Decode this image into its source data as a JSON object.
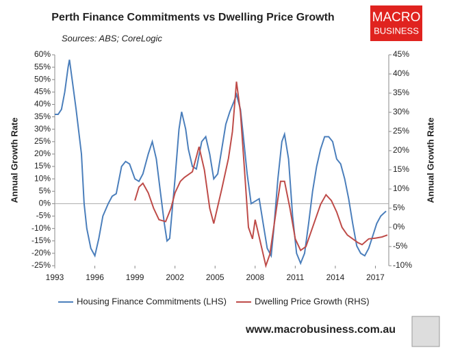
{
  "chart_data": {
    "type": "line",
    "title": "Perth Finance Commitments vs Dwelling Price Growth",
    "subtitle": "Sources: ABS; CoreLogic",
    "ylabel": "Annual Growth Rate",
    "y2label": "Annual Growth Rate",
    "xlim": [
      1993,
      2018
    ],
    "xticks": [
      1993,
      1996,
      1999,
      2002,
      2005,
      2008,
      2011,
      2014,
      2017
    ],
    "ylim": [
      -25,
      60
    ],
    "yticks": [
      {
        "value": -25,
        "label": "-25%"
      },
      {
        "value": -20,
        "label": "-20%"
      },
      {
        "value": -15,
        "label": "-15%"
      },
      {
        "value": -10,
        "label": "-10%"
      },
      {
        "value": -5,
        "label": "-5%"
      },
      {
        "value": 0,
        "label": "0%"
      },
      {
        "value": 5,
        "label": "5%"
      },
      {
        "value": 10,
        "label": "10%"
      },
      {
        "value": 15,
        "label": "15%"
      },
      {
        "value": 20,
        "label": "20%"
      },
      {
        "value": 25,
        "label": "25%"
      },
      {
        "value": 30,
        "label": "30%"
      },
      {
        "value": 35,
        "label": "35%"
      },
      {
        "value": 40,
        "label": "40%"
      },
      {
        "value": 45,
        "label": "45%"
      },
      {
        "value": 50,
        "label": "50%"
      },
      {
        "value": 55,
        "label": "55%"
      },
      {
        "value": 60,
        "label": "60%"
      }
    ],
    "y2lim": [
      -10,
      45
    ],
    "y2ticks": [
      {
        "value": -10,
        "label": "-10%"
      },
      {
        "value": -5,
        "label": "-5%"
      },
      {
        "value": 0,
        "label": "0%"
      },
      {
        "value": 5,
        "label": "5%"
      },
      {
        "value": 10,
        "label": "10%"
      },
      {
        "value": 15,
        "label": "15%"
      },
      {
        "value": 20,
        "label": "20%"
      },
      {
        "value": 25,
        "label": "25%"
      },
      {
        "value": 30,
        "label": "30%"
      },
      {
        "value": 35,
        "label": "35%"
      },
      {
        "value": 40,
        "label": "40%"
      },
      {
        "value": 45,
        "label": "45%"
      }
    ],
    "grid": false,
    "legend": "bottom",
    "series": [
      {
        "name": "Housing Finance Commitments (LHS)",
        "color": "#4a7ebb",
        "axis": "y",
        "x": [
          1993.0,
          1993.25,
          1993.5,
          1993.75,
          1994.0,
          1994.1,
          1994.3,
          1994.6,
          1995.0,
          1995.2,
          1995.4,
          1995.7,
          1996.0,
          1996.3,
          1996.6,
          1997.0,
          1997.3,
          1997.6,
          1998.0,
          1998.3,
          1998.6,
          1999.0,
          1999.3,
          1999.6,
          2000.0,
          2000.3,
          2000.6,
          2000.9,
          2001.2,
          2001.4,
          2001.6,
          2002.0,
          2002.3,
          2002.5,
          2002.8,
          2003.0,
          2003.3,
          2003.6,
          2004.0,
          2004.3,
          2004.6,
          2004.9,
          2005.2,
          2005.5,
          2005.8,
          2006.1,
          2006.4,
          2006.6,
          2006.9,
          2007.1,
          2007.4,
          2007.7,
          2008.0,
          2008.3,
          2008.6,
          2008.9,
          2009.2,
          2009.4,
          2009.7,
          2010.0,
          2010.2,
          2010.5,
          2010.8,
          2011.1,
          2011.4,
          2011.7,
          2012.0,
          2012.3,
          2012.6,
          2012.9,
          2013.2,
          2013.5,
          2013.8,
          2014.1,
          2014.4,
          2014.7,
          2015.0,
          2015.3,
          2015.6,
          2015.9,
          2016.2,
          2016.5,
          2016.8,
          2017.1,
          2017.4,
          2017.6,
          2017.8
        ],
        "values": [
          36,
          36,
          38,
          45,
          55,
          58,
          50,
          38,
          20,
          0,
          -10,
          -18,
          -21,
          -14,
          -5,
          0,
          3,
          4,
          15,
          17,
          16,
          10,
          9,
          12,
          20,
          25,
          18,
          5,
          -8,
          -15,
          -14,
          10,
          30,
          37,
          30,
          22,
          15,
          14,
          25,
          27,
          20,
          10,
          12,
          22,
          32,
          37,
          41,
          44,
          38,
          28,
          12,
          0,
          1,
          2,
          -8,
          -18,
          -21,
          -10,
          10,
          25,
          28,
          18,
          -5,
          -20,
          -24,
          -20,
          -8,
          5,
          15,
          22,
          27,
          27,
          25,
          18,
          16,
          10,
          2,
          -8,
          -17,
          -20,
          -21,
          -18,
          -13,
          -8,
          -5,
          -4,
          -3
        ]
      },
      {
        "name": "Dwelling Price Growth (RHS)",
        "color": "#be4b48",
        "axis": "y2",
        "x": [
          1999.0,
          1999.3,
          1999.6,
          2000.0,
          2000.4,
          2000.8,
          2001.3,
          2001.7,
          2002.0,
          2002.4,
          2002.7,
          2003.3,
          2003.8,
          2004.2,
          2004.6,
          2004.9,
          2005.5,
          2006.0,
          2006.3,
          2006.6,
          2006.9,
          2007.2,
          2007.5,
          2007.8,
          2008.0,
          2008.4,
          2008.8,
          2009.1,
          2009.6,
          2009.9,
          2010.2,
          2010.6,
          2011.0,
          2011.4,
          2011.8,
          2012.1,
          2012.5,
          2012.9,
          2013.3,
          2013.7,
          2014.1,
          2014.5,
          2014.9,
          2015.3,
          2015.7,
          2016.0,
          2016.5,
          2017.0,
          2017.5,
          2017.9
        ],
        "values": [
          7,
          10.5,
          11.5,
          9,
          5,
          2,
          1.5,
          5,
          9,
          12,
          13,
          14.5,
          21,
          15,
          5,
          1,
          10,
          18,
          25,
          38,
          30,
          15,
          0,
          -3,
          2,
          -4,
          -10,
          -7,
          5,
          12,
          12,
          5,
          -3,
          -6,
          -5,
          -2,
          2,
          6,
          8.5,
          7,
          4,
          0,
          -2,
          -3,
          -4,
          -4.5,
          -3,
          -2.8,
          -2.5,
          -2
        ]
      }
    ]
  },
  "branding": {
    "logo_top": "MACRO",
    "logo_bottom": "BUSINESS",
    "url": "www.macrobusiness.com.au"
  }
}
